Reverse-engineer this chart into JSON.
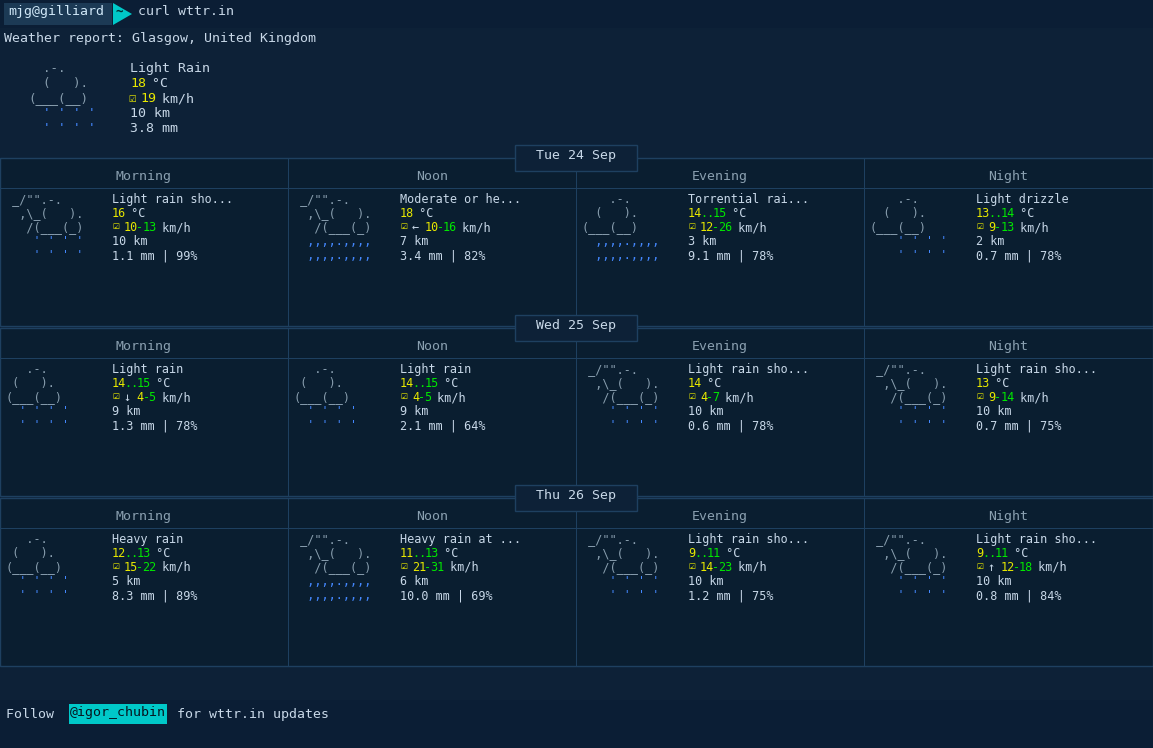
{
  "bg_color": "#0d2137",
  "bg_dark": "#0a1e30",
  "border_color": "#1e4060",
  "text_color": "#c8d8e8",
  "dim_text": "#8aa0b0",
  "yellow": "#e8e800",
  "green": "#00e800",
  "cyan": "#00c8c8",
  "blue": "#4488ff",
  "weather_report": "Weather report: Glasgow, United Kingdom",
  "current_weather": {
    "art": [
      "  .-.",
      "  (   ).",
      "(___(__)",
      "  ' ' ' '",
      "  ' ' ' '"
    ],
    "desc": "Light Rain",
    "temp": "18",
    "wind": "19",
    "vis": "10",
    "precip": "3.8"
  },
  "days": [
    {
      "label": "Tue 24 Sep",
      "periods": [
        {
          "name": "Morning",
          "art": [
            " _/\"\".-.",
            "  ,\\_(   ).",
            "   /(___(_)",
            "    ' ' ' '",
            "    ' ' ' '"
          ],
          "desc": "Light rain sho...",
          "temp": "16",
          "wind": "10-13",
          "wind_dir": "",
          "vis": "10",
          "precip": "1.1",
          "prob": "99"
        },
        {
          "name": "Noon",
          "art": [
            " _/\"\".-.",
            "  ,\\_(   ).",
            "   /(___(_)",
            "  ,,,,.,,,,",
            "  ,,,,.,,,,"
          ],
          "desc": "Moderate or he...",
          "temp": "18",
          "wind": "10-16",
          "wind_dir": "← ",
          "vis": "7",
          "precip": "3.4",
          "prob": "82"
        },
        {
          "name": "Evening",
          "art": [
            "    .-.",
            "  (   ).",
            "(___(__)",
            "  ,,,,.,,,,",
            "  ,,,,.,,,,"
          ],
          "desc": "Torrential rai...",
          "temp": "14..15",
          "wind": "12-26",
          "wind_dir": "",
          "vis": "3",
          "precip": "9.1",
          "prob": "78"
        },
        {
          "name": "Night",
          "art": [
            "    .-.",
            "  (   ).",
            "(___(__)",
            "    ' ' ' '",
            "    ' ' ' '"
          ],
          "desc": "Light drizzle",
          "temp": "13..14",
          "wind": "9-13",
          "wind_dir": "",
          "vis": "2",
          "precip": "0.7",
          "prob": "78"
        }
      ]
    },
    {
      "label": "Wed 25 Sep",
      "periods": [
        {
          "name": "Morning",
          "art": [
            "   .-.",
            " (   ).",
            "(___(__)",
            "  ' ' ' '",
            "  ' ' ' '"
          ],
          "desc": "Light rain",
          "temp": "14..15",
          "wind": "4-5",
          "wind_dir": "↓ ",
          "vis": "9",
          "precip": "1.3",
          "prob": "78"
        },
        {
          "name": "Noon",
          "art": [
            "   .-.",
            " (   ).",
            "(___(__)",
            "  ' ' ' '",
            "  ' ' ' '"
          ],
          "desc": "Light rain",
          "temp": "14..15",
          "wind": "4-5",
          "wind_dir": "",
          "vis": "9",
          "precip": "2.1",
          "prob": "64"
        },
        {
          "name": "Evening",
          "art": [
            " _/\"\".-.",
            "  ,\\_(   ).",
            "   /(___(_)",
            "    ' ' ' '",
            "    ' ' ' '"
          ],
          "desc": "Light rain sho...",
          "temp": "14",
          "wind": "4-7",
          "wind_dir": "",
          "vis": "10",
          "precip": "0.6",
          "prob": "78"
        },
        {
          "name": "Night",
          "art": [
            " _/\"\".-.",
            "  ,\\_(   ).",
            "   /(___(_)",
            "    ' ' ' '",
            "    ' ' ' '"
          ],
          "desc": "Light rain sho...",
          "temp": "13",
          "wind": "9-14",
          "wind_dir": "",
          "vis": "10",
          "precip": "0.7",
          "prob": "75"
        }
      ]
    },
    {
      "label": "Thu 26 Sep",
      "periods": [
        {
          "name": "Morning",
          "art": [
            "   .-.",
            " (   ).",
            "(___(__)",
            "  ' ' ' '",
            "  ' ' ' '"
          ],
          "desc": "Heavy rain",
          "temp": "12..13",
          "wind": "15-22",
          "wind_dir": "",
          "vis": "5",
          "precip": "8.3",
          "prob": "89"
        },
        {
          "name": "Noon",
          "art": [
            " _/\"\".-.",
            "  ,\\_(   ).",
            "   /(___(_)",
            "  ,,,,.,,,,",
            "  ,,,,.,,,,"
          ],
          "desc": "Heavy rain at ...",
          "temp": "11..13",
          "wind": "21-31",
          "wind_dir": "",
          "vis": "6",
          "precip": "10.0",
          "prob": "69"
        },
        {
          "name": "Evening",
          "art": [
            " _/\"\".-.",
            "  ,\\_(   ).",
            "   /(___(_)",
            "    ' ' ' '",
            "    ' ' ' '"
          ],
          "desc": "Light rain sho...",
          "temp": "9..11",
          "wind": "14-23",
          "wind_dir": "",
          "vis": "10",
          "precip": "1.2",
          "prob": "75"
        },
        {
          "name": "Night",
          "art": [
            " _/\"\".-.",
            "  ,\\_(   ).",
            "   /(___(_)",
            "    ' ' ' '",
            "    ' ' ' '"
          ],
          "desc": "Light rain sho...",
          "temp": "9..11",
          "wind": "12-18",
          "wind_dir": "↑ ",
          "vis": "10",
          "precip": "0.8",
          "prob": "84"
        }
      ]
    }
  ]
}
